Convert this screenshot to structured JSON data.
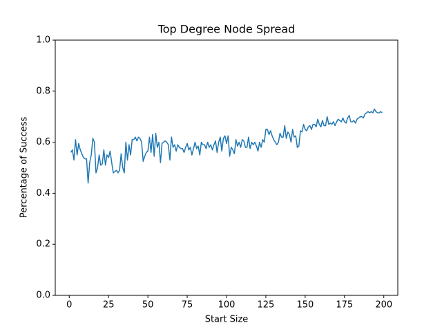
{
  "chart_data": {
    "type": "line",
    "title": "Top Degree Node Spread",
    "xlabel": "Start Size",
    "ylabel": "Percentage of Success",
    "x": [
      1,
      2,
      3,
      4,
      5,
      6,
      7,
      8,
      9,
      10,
      11,
      12,
      13,
      14,
      15,
      16,
      17,
      18,
      19,
      20,
      21,
      22,
      23,
      24,
      25,
      26,
      27,
      28,
      29,
      30,
      31,
      32,
      33,
      34,
      35,
      36,
      37,
      38,
      39,
      40,
      41,
      42,
      43,
      44,
      45,
      46,
      47,
      48,
      49,
      50,
      51,
      52,
      53,
      54,
      55,
      56,
      57,
      58,
      59,
      60,
      61,
      62,
      63,
      64,
      65,
      66,
      67,
      68,
      69,
      70,
      71,
      72,
      73,
      74,
      75,
      76,
      77,
      78,
      79,
      80,
      81,
      82,
      83,
      84,
      85,
      86,
      87,
      88,
      89,
      90,
      91,
      92,
      93,
      94,
      95,
      96,
      97,
      98,
      99,
      100,
      101,
      102,
      103,
      104,
      105,
      106,
      107,
      108,
      109,
      110,
      111,
      112,
      113,
      114,
      115,
      116,
      117,
      118,
      119,
      120,
      121,
      122,
      123,
      124,
      125,
      126,
      127,
      128,
      129,
      130,
      131,
      132,
      133,
      134,
      135,
      136,
      137,
      138,
      139,
      140,
      141,
      142,
      143,
      144,
      145,
      146,
      147,
      148,
      149,
      150,
      151,
      152,
      153,
      154,
      155,
      156,
      157,
      158,
      159,
      160,
      161,
      162,
      163,
      164,
      165,
      166,
      167,
      168,
      169,
      170,
      171,
      172,
      173,
      174,
      175,
      176,
      177,
      178,
      179,
      180,
      181,
      182,
      183,
      184,
      185,
      186,
      187,
      188,
      189,
      190,
      191,
      192,
      193,
      194,
      195,
      196,
      197,
      198,
      199
    ],
    "series": [
      {
        "color": "#1f77b4",
        "values": [
          0.56,
          0.57,
          0.53,
          0.61,
          0.55,
          0.595,
          0.57,
          0.555,
          0.54,
          0.535,
          0.535,
          0.44,
          0.52,
          0.55,
          0.615,
          0.6,
          0.48,
          0.5,
          0.55,
          0.51,
          0.515,
          0.57,
          0.51,
          0.55,
          0.54,
          0.565,
          0.52,
          0.48,
          0.485,
          0.49,
          0.48,
          0.49,
          0.555,
          0.5,
          0.48,
          0.6,
          0.53,
          0.59,
          0.55,
          0.61,
          0.61,
          0.62,
          0.605,
          0.62,
          0.615,
          0.6,
          0.525,
          0.545,
          0.56,
          0.565,
          0.62,
          0.56,
          0.63,
          0.545,
          0.635,
          0.58,
          0.6,
          0.52,
          0.595,
          0.6,
          0.605,
          0.6,
          0.59,
          0.53,
          0.62,
          0.58,
          0.59,
          0.565,
          0.59,
          0.58,
          0.575,
          0.575,
          0.56,
          0.58,
          0.595,
          0.57,
          0.58,
          0.55,
          0.575,
          0.6,
          0.575,
          0.585,
          0.55,
          0.6,
          0.59,
          0.59,
          0.575,
          0.6,
          0.58,
          0.59,
          0.57,
          0.59,
          0.605,
          0.56,
          0.6,
          0.62,
          0.565,
          0.615,
          0.625,
          0.595,
          0.625,
          0.545,
          0.58,
          0.57,
          0.555,
          0.61,
          0.585,
          0.6,
          0.58,
          0.61,
          0.605,
          0.58,
          0.58,
          0.62,
          0.575,
          0.6,
          0.59,
          0.6,
          0.585,
          0.565,
          0.6,
          0.58,
          0.61,
          0.6,
          0.65,
          0.65,
          0.63,
          0.645,
          0.625,
          0.61,
          0.6,
          0.59,
          0.6,
          0.635,
          0.62,
          0.62,
          0.665,
          0.615,
          0.64,
          0.63,
          0.6,
          0.65,
          0.62,
          0.625,
          0.58,
          0.585,
          0.645,
          0.64,
          0.67,
          0.65,
          0.645,
          0.66,
          0.665,
          0.65,
          0.67,
          0.67,
          0.66,
          0.69,
          0.67,
          0.66,
          0.685,
          0.665,
          0.665,
          0.7,
          0.67,
          0.675,
          0.67,
          0.68,
          0.665,
          0.68,
          0.69,
          0.685,
          0.68,
          0.695,
          0.68,
          0.675,
          0.695,
          0.705,
          0.68,
          0.68,
          0.685,
          0.675,
          0.69,
          0.695,
          0.7,
          0.7,
          0.695,
          0.71,
          0.715,
          0.72,
          0.715,
          0.72,
          0.715,
          0.73,
          0.72,
          0.715,
          0.715,
          0.72,
          0.715
        ]
      }
    ],
    "xlim": [
      -8.9,
      208.9
    ],
    "ylim": [
      0,
      1
    ],
    "xticks": [
      0,
      25,
      50,
      75,
      100,
      125,
      150,
      175,
      200
    ],
    "yticks": [
      {
        "value": 0,
        "label": "0.0"
      },
      0.2,
      0.4,
      0.6,
      0.8,
      {
        "value": 1,
        "label": "1.0"
      }
    ]
  }
}
